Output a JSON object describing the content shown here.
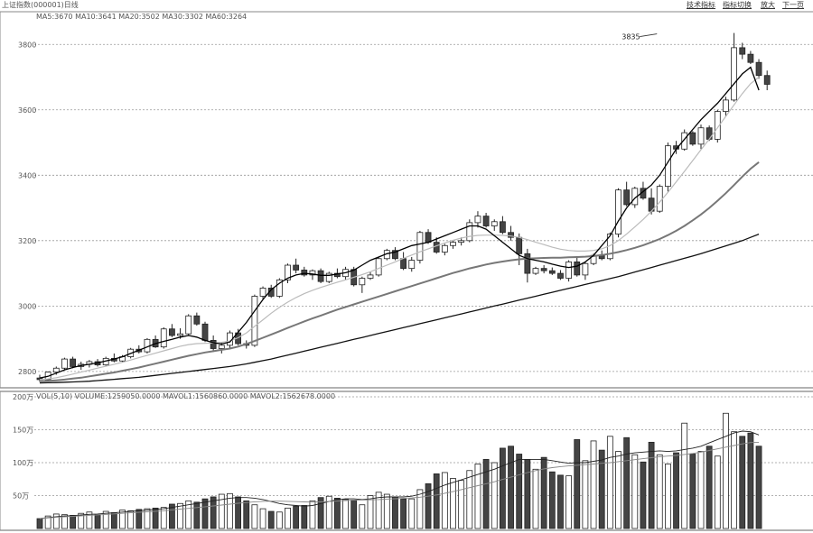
{
  "header": {
    "title": "上证指数(000001)日线",
    "toolbar": [
      {
        "name": "toolbar-tech-button",
        "label": "技术指标"
      },
      {
        "name": "toolbar-switch-button",
        "label": "指标切换"
      },
      {
        "name": "toolbar-zoom-button",
        "label": "放大"
      },
      {
        "name": "toolbar-next-button",
        "label": "下一页"
      }
    ],
    "price_indicator": "MA5:3670  MA10:3641  MA20:3502  MA30:3302  MA60:3264",
    "volume_indicator": "VOL(5,10)  VOLUME:1259050.0000  MAVOL1:1560860.0000  MAVOL2:1562678.0000"
  },
  "colors": {
    "up": "#ffffff",
    "down": "#444444",
    "ma5": "#000000",
    "ma10": "#bbbbbb",
    "ma20": "#777777",
    "ma30": "#111111",
    "grid": "#999999"
  },
  "chart_data": [
    {
      "type": "candlestick",
      "title": "",
      "ylim": [
        2750,
        3900
      ],
      "yticks": [
        {
          "value": 2800,
          "label": "2800"
        },
        {
          "value": 3000,
          "label": "3000"
        },
        {
          "value": 3200,
          "label": "3200"
        },
        {
          "value": 3400,
          "label": "3400"
        },
        {
          "value": 3600,
          "label": "3600"
        },
        {
          "value": 3800,
          "label": "3800"
        }
      ],
      "annotations": [
        {
          "label": "3835",
          "value": 3835,
          "index": 75
        }
      ],
      "candles": [
        [
          2780,
          2790,
          2768,
          2775
        ],
        [
          2775,
          2800,
          2770,
          2798
        ],
        [
          2798,
          2815,
          2790,
          2810
        ],
        [
          2810,
          2842,
          2806,
          2838
        ],
        [
          2838,
          2845,
          2810,
          2815
        ],
        [
          2815,
          2830,
          2805,
          2822
        ],
        [
          2822,
          2835,
          2812,
          2830
        ],
        [
          2830,
          2838,
          2815,
          2820
        ],
        [
          2820,
          2845,
          2815,
          2840
        ],
        [
          2840,
          2855,
          2828,
          2832
        ],
        [
          2832,
          2850,
          2828,
          2845
        ],
        [
          2845,
          2872,
          2840,
          2868
        ],
        [
          2868,
          2880,
          2855,
          2860
        ],
        [
          2860,
          2902,
          2855,
          2898
        ],
        [
          2898,
          2910,
          2872,
          2875
        ],
        [
          2875,
          2935,
          2870,
          2930
        ],
        [
          2930,
          2945,
          2905,
          2910
        ],
        [
          2910,
          2932,
          2900,
          2915
        ],
        [
          2915,
          2975,
          2910,
          2970
        ],
        [
          2970,
          2980,
          2940,
          2945
        ],
        [
          2945,
          2952,
          2890,
          2895
        ],
        [
          2895,
          2910,
          2860,
          2870
        ],
        [
          2870,
          2890,
          2855,
          2880
        ],
        [
          2880,
          2925,
          2870,
          2918
        ],
        [
          2918,
          2930,
          2880,
          2885
        ],
        [
          2885,
          2895,
          2870,
          2880
        ],
        [
          2880,
          3035,
          2875,
          3030
        ],
        [
          3030,
          3060,
          3020,
          3055
        ],
        [
          3055,
          3065,
          3025,
          3030
        ],
        [
          3030,
          3085,
          3025,
          3080
        ],
        [
          3080,
          3130,
          3070,
          3125
        ],
        [
          3125,
          3145,
          3100,
          3110
        ],
        [
          3110,
          3120,
          3090,
          3095
        ],
        [
          3095,
          3112,
          3080,
          3108
        ],
        [
          3108,
          3115,
          3070,
          3075
        ],
        [
          3075,
          3105,
          3070,
          3100
        ],
        [
          3100,
          3115,
          3085,
          3090
        ],
        [
          3090,
          3120,
          3080,
          3112
        ],
        [
          3112,
          3120,
          3060,
          3065
        ],
        [
          3065,
          3090,
          3040,
          3085
        ],
        [
          3085,
          3105,
          3080,
          3095
        ],
        [
          3095,
          3150,
          3090,
          3145
        ],
        [
          3145,
          3175,
          3140,
          3170
        ],
        [
          3170,
          3180,
          3140,
          3145
        ],
        [
          3145,
          3165,
          3110,
          3115
        ],
        [
          3115,
          3150,
          3105,
          3140
        ],
        [
          3140,
          3230,
          3130,
          3225
        ],
        [
          3225,
          3235,
          3190,
          3195
        ],
        [
          3195,
          3210,
          3160,
          3165
        ],
        [
          3165,
          3190,
          3155,
          3185
        ],
        [
          3185,
          3200,
          3175,
          3195
        ],
        [
          3195,
          3210,
          3185,
          3200
        ],
        [
          3200,
          3265,
          3195,
          3255
        ],
        [
          3255,
          3290,
          3240,
          3275
        ],
        [
          3275,
          3285,
          3240,
          3245
        ],
        [
          3245,
          3265,
          3230,
          3258
        ],
        [
          3258,
          3275,
          3220,
          3225
        ],
        [
          3225,
          3245,
          3200,
          3210
        ],
        [
          3210,
          3222,
          3125,
          3160
        ],
        [
          3160,
          3175,
          3072,
          3100
        ],
        [
          3100,
          3120,
          3095,
          3115
        ],
        [
          3115,
          3125,
          3100,
          3108
        ],
        [
          3108,
          3118,
          3095,
          3100
        ],
        [
          3100,
          3110,
          3080,
          3085
        ],
        [
          3085,
          3140,
          3075,
          3135
        ],
        [
          3135,
          3150,
          3090,
          3095
        ],
        [
          3095,
          3135,
          3080,
          3130
        ],
        [
          3130,
          3160,
          3125,
          3155
        ],
        [
          3155,
          3170,
          3140,
          3145
        ],
        [
          3145,
          3225,
          3140,
          3220
        ],
        [
          3220,
          3360,
          3210,
          3355
        ],
        [
          3355,
          3380,
          3305,
          3310
        ],
        [
          3310,
          3365,
          3300,
          3360
        ],
        [
          3360,
          3380,
          3325,
          3330
        ],
        [
          3330,
          3360,
          3280,
          3290
        ],
        [
          3290,
          3372,
          3285,
          3366
        ],
        [
          3366,
          3500,
          3350,
          3490
        ],
        [
          3490,
          3505,
          3465,
          3480
        ],
        [
          3480,
          3540,
          3475,
          3530
        ],
        [
          3530,
          3535,
          3490,
          3495
        ],
        [
          3495,
          3555,
          3480,
          3545
        ],
        [
          3545,
          3552,
          3505,
          3510
        ],
        [
          3510,
          3600,
          3500,
          3595
        ],
        [
          3595,
          3640,
          3580,
          3630
        ],
        [
          3630,
          3835,
          3625,
          3790
        ],
        [
          3790,
          3805,
          3755,
          3770
        ],
        [
          3770,
          3780,
          3740,
          3745
        ],
        [
          3745,
          3755,
          3695,
          3705
        ],
        [
          3705,
          3720,
          3660,
          3678
        ]
      ],
      "ma5": [
        2780,
        2785,
        2795,
        2805,
        2812,
        2818,
        2822,
        2826,
        2832,
        2838,
        2845,
        2855,
        2865,
        2875,
        2885,
        2892,
        2898,
        2905,
        2910,
        2905,
        2895,
        2888,
        2884,
        2890,
        2920,
        2950,
        2985,
        3020,
        3050,
        3070,
        3085,
        3095,
        3100,
        3098,
        3094,
        3094,
        3098,
        3102,
        3110,
        3125,
        3140,
        3150,
        3160,
        3165,
        3175,
        3185,
        3190,
        3195,
        3205,
        3215,
        3225,
        3235,
        3245,
        3245,
        3235,
        3215,
        3195,
        3175,
        3155,
        3145,
        3140,
        3135,
        3128,
        3122,
        3118,
        3122,
        3135,
        3155,
        3185,
        3215,
        3260,
        3300,
        3330,
        3350,
        3370,
        3400,
        3440,
        3480,
        3510,
        3540,
        3570,
        3595,
        3620,
        3650,
        3680,
        3710,
        3730,
        3660
      ],
      "ma10": [
        2775,
        2777,
        2781,
        2786,
        2792,
        2798,
        2804,
        2810,
        2816,
        2822,
        2828,
        2835,
        2842,
        2849,
        2856,
        2863,
        2870,
        2877,
        2882,
        2885,
        2886,
        2887,
        2889,
        2893,
        2903,
        2918,
        2938,
        2958,
        2978,
        2996,
        3012,
        3026,
        3038,
        3048,
        3057,
        3065,
        3073,
        3080,
        3088,
        3096,
        3105,
        3115,
        3125,
        3135,
        3146,
        3156,
        3166,
        3175,
        3184,
        3193,
        3201,
        3208,
        3213,
        3216,
        3217,
        3217,
        3216,
        3214,
        3210,
        3203,
        3195,
        3188,
        3180,
        3174,
        3170,
        3168,
        3168,
        3170,
        3175,
        3185,
        3200,
        3220,
        3242,
        3265,
        3290,
        3318,
        3348,
        3380,
        3412,
        3445,
        3478,
        3510,
        3545,
        3580,
        3615,
        3650,
        3680,
        3700
      ],
      "ma20": [
        2770,
        2771,
        2773,
        2775,
        2778,
        2781,
        2785,
        2789,
        2793,
        2797,
        2802,
        2807,
        2812,
        2818,
        2824,
        2830,
        2836,
        2842,
        2848,
        2853,
        2858,
        2862,
        2866,
        2870,
        2876,
        2884,
        2893,
        2903,
        2913,
        2923,
        2933,
        2943,
        2953,
        2962,
        2971,
        2980,
        2989,
        2997,
        3005,
        3013,
        3021,
        3029,
        3037,
        3045,
        3053,
        3061,
        3069,
        3077,
        3085,
        3093,
        3101,
        3108,
        3115,
        3121,
        3127,
        3132,
        3136,
        3140,
        3143,
        3145,
        3146,
        3147,
        3148,
        3148,
        3149,
        3150,
        3151,
        3153,
        3156,
        3160,
        3165,
        3171,
        3178,
        3186,
        3195,
        3205,
        3217,
        3230,
        3245,
        3262,
        3280,
        3300,
        3322,
        3345,
        3370,
        3396,
        3420,
        3440
      ],
      "ma30": [
        2765,
        2765.5,
        2766,
        2767,
        2768,
        2769,
        2770,
        2772,
        2774,
        2776,
        2778,
        2780,
        2782,
        2785,
        2788,
        2791,
        2794,
        2797,
        2800,
        2803,
        2806,
        2809,
        2812,
        2815,
        2819,
        2823,
        2828,
        2833,
        2838,
        2844,
        2850,
        2856,
        2862,
        2868,
        2874,
        2880,
        2886,
        2892,
        2898,
        2904,
        2910,
        2916,
        2922,
        2928,
        2934,
        2940,
        2946,
        2952,
        2958,
        2964,
        2970,
        2976,
        2982,
        2988,
        2994,
        3000,
        3006,
        3012,
        3018,
        3024,
        3030,
        3036,
        3042,
        3048,
        3054,
        3060,
        3066,
        3072,
        3078,
        3084,
        3090,
        3097,
        3104,
        3111,
        3118,
        3125,
        3132,
        3139,
        3146,
        3153,
        3160,
        3168,
        3176,
        3184,
        3192,
        3200,
        3210,
        3220
      ]
    },
    {
      "type": "bar",
      "title": "",
      "ylim": [
        0,
        2000000
      ],
      "yticks": [
        {
          "value": 500000,
          "label": "50万"
        },
        {
          "value": 1000000,
          "label": "100万"
        },
        {
          "value": 1500000,
          "label": "150万"
        },
        {
          "value": 2000000,
          "label": "200万"
        }
      ],
      "values": [
        150000,
        190000,
        220000,
        210000,
        200000,
        230000,
        250000,
        210000,
        260000,
        240000,
        280000,
        270000,
        290000,
        300000,
        310000,
        320000,
        370000,
        380000,
        420000,
        400000,
        450000,
        480000,
        520000,
        530000,
        480000,
        420000,
        360000,
        300000,
        260000,
        250000,
        310000,
        340000,
        350000,
        420000,
        470000,
        490000,
        460000,
        440000,
        430000,
        360000,
        500000,
        550000,
        520000,
        480000,
        450000,
        450000,
        590000,
        680000,
        830000,
        850000,
        760000,
        730000,
        880000,
        980000,
        1050000,
        1000000,
        1220000,
        1250000,
        1130000,
        1050000,
        900000,
        1080000,
        860000,
        810000,
        800000,
        1350000,
        1030000,
        1330000,
        1190000,
        1400000,
        1170000,
        1380000,
        1120000,
        1010000,
        1310000,
        1120000,
        980000,
        1150000,
        1600000,
        1130000,
        1170000,
        1250000,
        1100000,
        1750000,
        1470000,
        1400000,
        1450000,
        1250000
      ],
      "mavol1": [
        150000,
        165000,
        180000,
        190000,
        195000,
        205000,
        215000,
        220000,
        230000,
        240000,
        250000,
        260000,
        270000,
        280000,
        290000,
        300000,
        320000,
        340000,
        360000,
        380000,
        400000,
        420000,
        440000,
        460000,
        470000,
        470000,
        460000,
        440000,
        410000,
        380000,
        360000,
        350000,
        340000,
        350000,
        380000,
        410000,
        440000,
        450000,
        450000,
        440000,
        450000,
        470000,
        480000,
        480000,
        480000,
        490000,
        520000,
        560000,
        610000,
        660000,
        700000,
        740000,
        780000,
        820000,
        860000,
        900000,
        950000,
        1000000,
        1050000,
        1050000,
        1050000,
        1050000,
        1030000,
        1010000,
        990000,
        1000000,
        1000000,
        1020000,
        1040000,
        1080000,
        1100000,
        1130000,
        1150000,
        1160000,
        1170000,
        1180000,
        1170000,
        1180000,
        1200000,
        1220000,
        1250000,
        1300000,
        1350000,
        1400000,
        1450000,
        1480000,
        1470000,
        1420000
      ],
      "mavol2": [
        150000,
        160000,
        170000,
        178000,
        185000,
        192000,
        200000,
        207000,
        214000,
        222000,
        230000,
        238000,
        246000,
        254000,
        262000,
        270000,
        282000,
        294000,
        306000,
        318000,
        330000,
        342000,
        356000,
        370000,
        383000,
        395000,
        405000,
        412000,
        415000,
        415000,
        412000,
        408000,
        404000,
        402000,
        404000,
        410000,
        418000,
        425000,
        430000,
        433000,
        436000,
        440000,
        446000,
        452000,
        458000,
        465000,
        475000,
        490000,
        510000,
        535000,
        560000,
        590000,
        620000,
        650000,
        680000,
        710000,
        745000,
        780000,
        815000,
        850000,
        880000,
        905000,
        925000,
        940000,
        950000,
        960000,
        970000,
        980000,
        990000,
        1000000,
        1015000,
        1030000,
        1045000,
        1060000,
        1075000,
        1090000,
        1100000,
        1110000,
        1125000,
        1140000,
        1160000,
        1185000,
        1210000,
        1235000,
        1260000,
        1285000,
        1305000,
        1310000
      ]
    }
  ]
}
